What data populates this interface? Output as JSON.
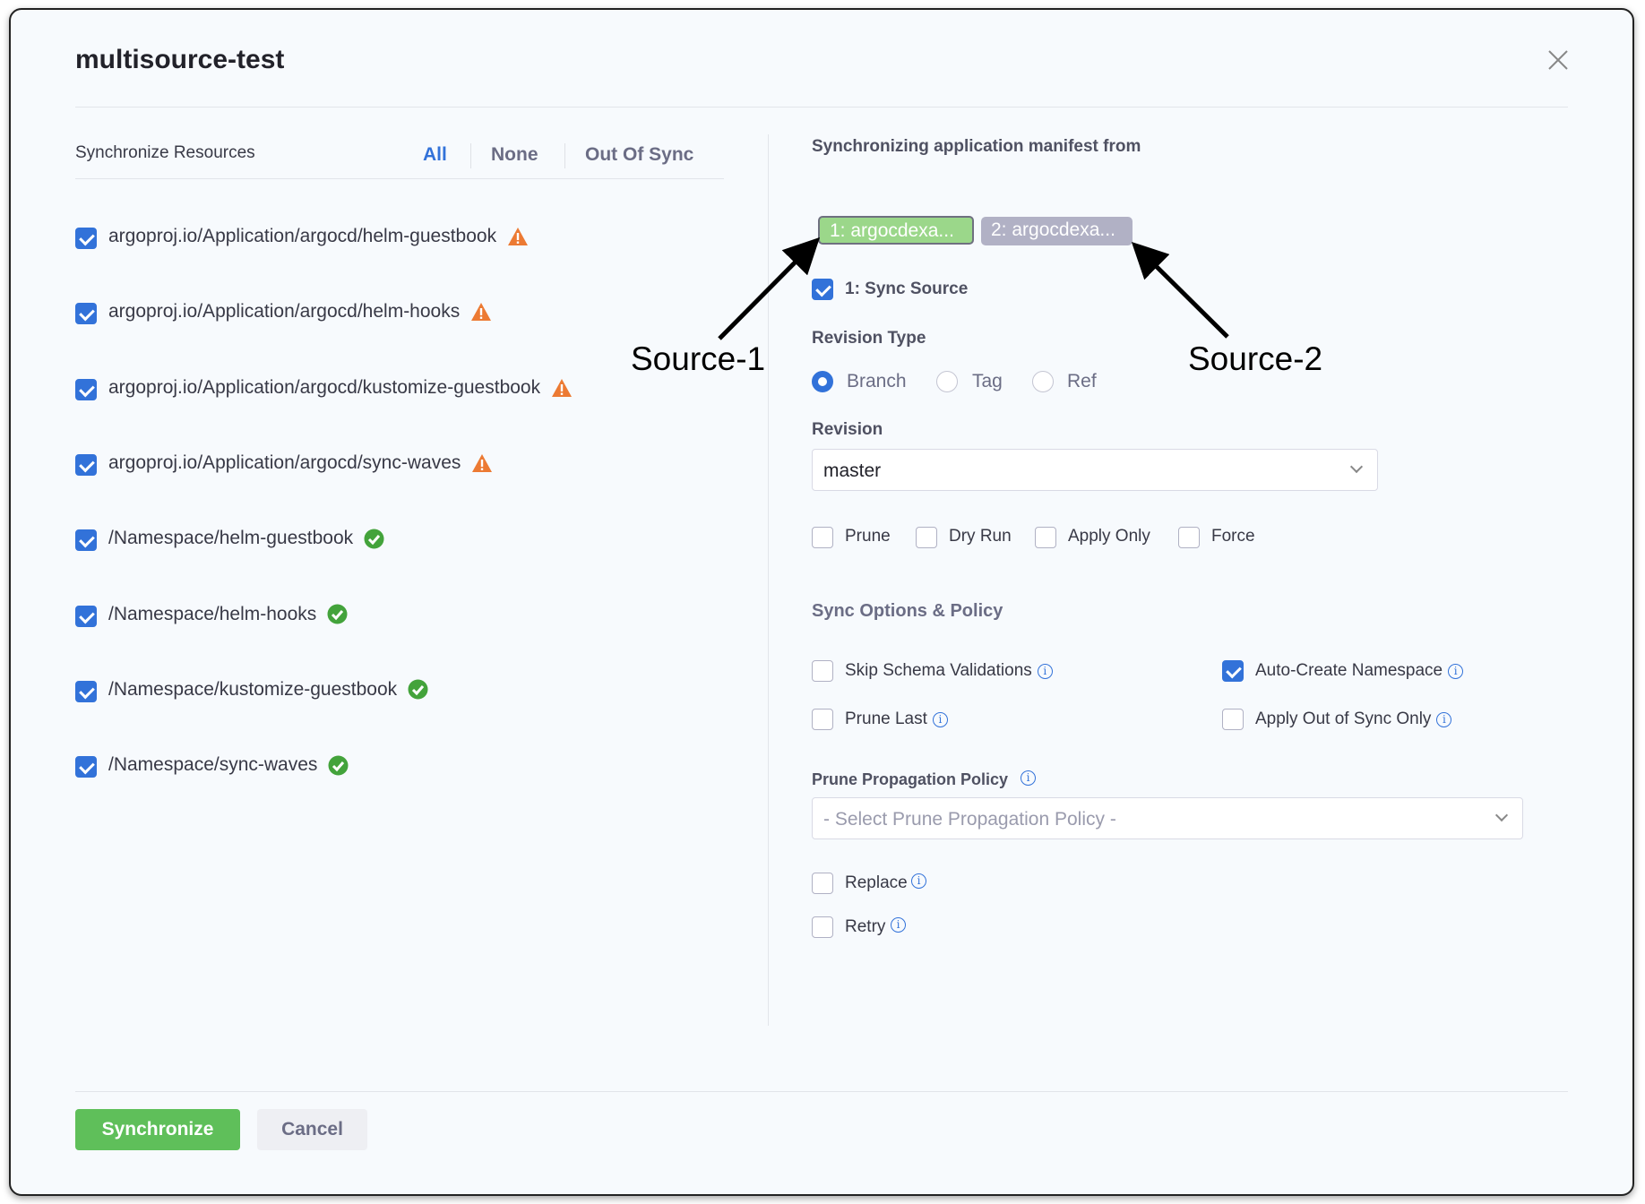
{
  "dialog": {
    "title": "multisource-test",
    "close_icon": "close-icon"
  },
  "left": {
    "heading": "Synchronize Resources",
    "filters": [
      "All",
      "None",
      "Out Of Sync"
    ],
    "active_filter": "All",
    "resources": [
      {
        "name": "argoproj.io/Application/argocd/helm-guestbook",
        "checked": true,
        "status": "warning"
      },
      {
        "name": "argoproj.io/Application/argocd/helm-hooks",
        "checked": true,
        "status": "warning"
      },
      {
        "name": "argoproj.io/Application/argocd/kustomize-guestbook",
        "checked": true,
        "status": "warning"
      },
      {
        "name": "argoproj.io/Application/argocd/sync-waves",
        "checked": true,
        "status": "warning"
      },
      {
        "name": "/Namespace/helm-guestbook",
        "checked": true,
        "status": "synced"
      },
      {
        "name": "/Namespace/helm-hooks",
        "checked": true,
        "status": "synced"
      },
      {
        "name": "/Namespace/kustomize-guestbook",
        "checked": true,
        "status": "synced"
      },
      {
        "name": "/Namespace/sync-waves",
        "checked": true,
        "status": "synced"
      }
    ]
  },
  "right": {
    "heading": "Synchronizing application manifest from",
    "sources": [
      {
        "label": "1: argocdexa...",
        "color": "#9bd78a",
        "selected": true
      },
      {
        "label": "2: argocdexa...",
        "color": "#b1b1c5",
        "selected": false
      }
    ],
    "sync_source": {
      "label": "1: Sync Source",
      "checked": true
    },
    "revision_type": {
      "label": "Revision Type",
      "options": [
        "Branch",
        "Tag",
        "Ref"
      ],
      "selected": "Branch"
    },
    "revision": {
      "label": "Revision",
      "value": "master"
    },
    "flags": [
      {
        "label": "Prune",
        "checked": false
      },
      {
        "label": "Dry Run",
        "checked": false
      },
      {
        "label": "Apply Only",
        "checked": false
      },
      {
        "label": "Force",
        "checked": false
      }
    ],
    "sync_options": {
      "heading": "Sync Options & Policy",
      "options": [
        {
          "label": "Skip Schema Validations",
          "checked": false
        },
        {
          "label": "Auto-Create Namespace",
          "checked": true
        },
        {
          "label": "Prune Last",
          "checked": false
        },
        {
          "label": "Apply Out of Sync Only",
          "checked": false
        }
      ]
    },
    "prune_policy": {
      "label": "Prune Propagation Policy",
      "placeholder": "- Select Prune Propagation Policy -"
    },
    "replace": {
      "label": "Replace",
      "checked": false
    },
    "retry": {
      "label": "Retry",
      "checked": false
    }
  },
  "footer": {
    "synchronize": "Synchronize",
    "cancel": "Cancel"
  },
  "annotations": {
    "source1": "Source-1",
    "source2": "Source-2"
  },
  "colors": {
    "accent": "#3272d9",
    "primary_button": "#5fbf5a",
    "warning": "#ec7a33",
    "success": "#43a33b"
  }
}
